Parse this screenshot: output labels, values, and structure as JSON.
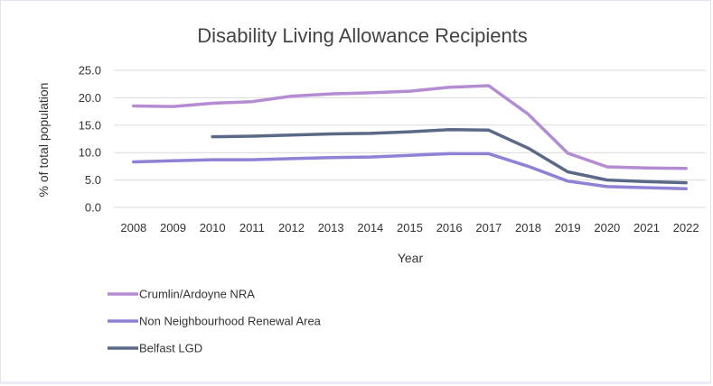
{
  "chart_data": {
    "type": "line",
    "title": "Disability Living Allowance Recipients",
    "xlabel": "Year",
    "ylabel": "% of total population",
    "ylim": [
      0,
      25
    ],
    "yticks": [
      "25.0",
      "20.0",
      "15.0",
      "10.0",
      "5.0",
      "0.0"
    ],
    "categories": [
      "2008",
      "2009",
      "2010",
      "2011",
      "2012",
      "2013",
      "2014",
      "2015",
      "2016",
      "2017",
      "2018",
      "2019",
      "2020",
      "2021",
      "2022"
    ],
    "grid": true,
    "legend": "bottom-left",
    "series": [
      {
        "name": "Crumlin/Ardoyne NRA",
        "color": "#b48cd2",
        "values": [
          18.5,
          18.4,
          19.0,
          19.3,
          20.3,
          20.7,
          20.9,
          21.2,
          21.9,
          22.2,
          17.0,
          9.9,
          7.4,
          7.2,
          7.1
        ]
      },
      {
        "name": "Non Neighbourhood Renewal Area",
        "color": "#8e82d6",
        "values": [
          8.3,
          8.5,
          8.7,
          8.7,
          8.9,
          9.1,
          9.2,
          9.5,
          9.8,
          9.8,
          7.5,
          4.8,
          3.8,
          3.6,
          3.4
        ]
      },
      {
        "name": "Belfast LGD",
        "color": "#5a6986",
        "values": [
          null,
          null,
          12.9,
          13.0,
          13.2,
          13.4,
          13.5,
          13.8,
          14.2,
          14.1,
          10.8,
          6.5,
          5.0,
          4.7,
          4.5
        ]
      }
    ]
  }
}
